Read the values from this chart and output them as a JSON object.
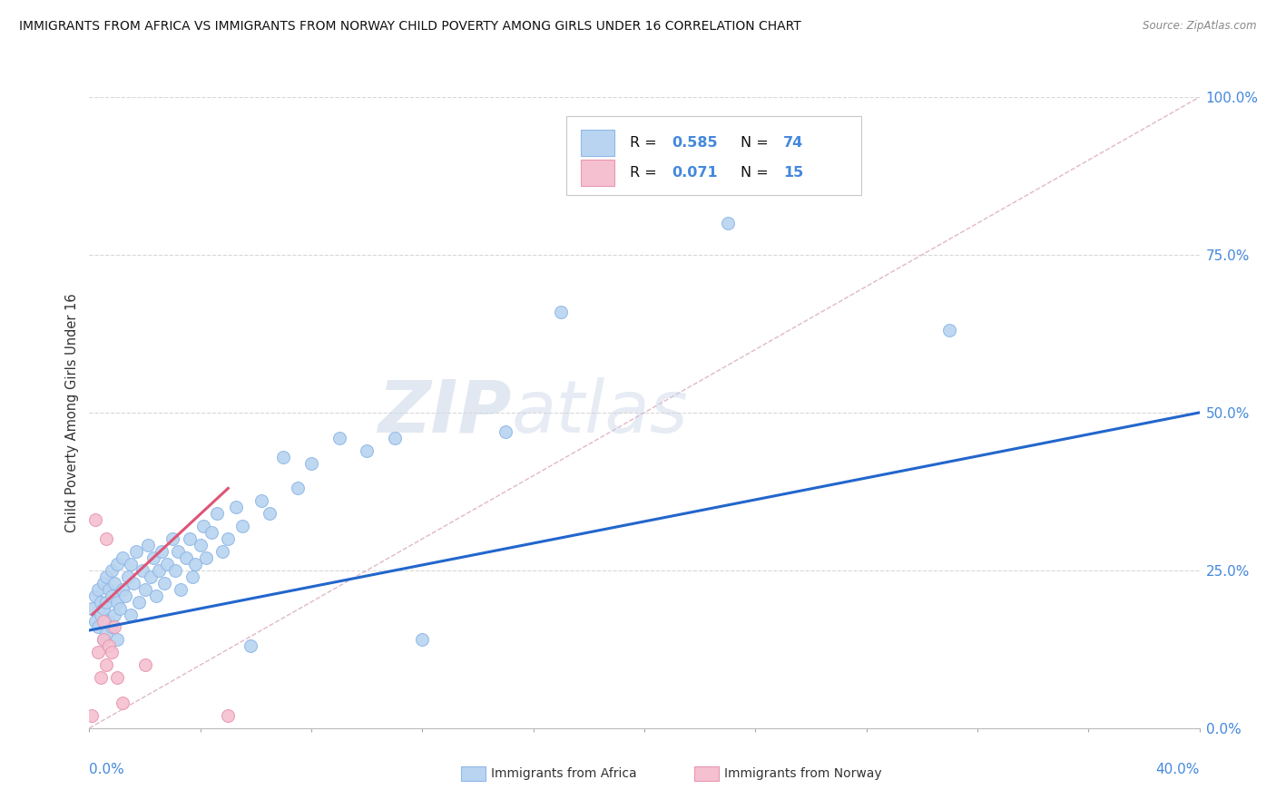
{
  "title": "IMMIGRANTS FROM AFRICA VS IMMIGRANTS FROM NORWAY CHILD POVERTY AMONG GIRLS UNDER 16 CORRELATION CHART",
  "source": "Source: ZipAtlas.com",
  "ylabel": "Child Poverty Among Girls Under 16",
  "ytick_labels": [
    "0.0%",
    "25.0%",
    "50.0%",
    "75.0%",
    "100.0%"
  ],
  "ytick_values": [
    0.0,
    0.25,
    0.5,
    0.75,
    1.0
  ],
  "xlim": [
    0.0,
    0.4
  ],
  "ylim": [
    0.0,
    1.0
  ],
  "africa_color": "#b8d4f0",
  "africa_edge": "#90b8e8",
  "norway_color": "#f5c0d0",
  "norway_edge": "#e898b0",
  "africa_line_color": "#2266cc",
  "norway_line_color": "#dd5577",
  "diag_color": "#d0c0c8",
  "watermark_zip": "ZIP",
  "watermark_atlas": "atlas",
  "legend_bottom_africa": "Immigrants from Africa",
  "legend_bottom_norway": "Immigrants from Norway",
  "africa_x": [
    0.001,
    0.002,
    0.002,
    0.003,
    0.003,
    0.004,
    0.004,
    0.005,
    0.005,
    0.005,
    0.006,
    0.006,
    0.006,
    0.007,
    0.007,
    0.008,
    0.008,
    0.008,
    0.009,
    0.009,
    0.01,
    0.01,
    0.01,
    0.011,
    0.012,
    0.012,
    0.013,
    0.014,
    0.015,
    0.015,
    0.016,
    0.017,
    0.018,
    0.019,
    0.02,
    0.021,
    0.022,
    0.023,
    0.024,
    0.025,
    0.026,
    0.027,
    0.028,
    0.03,
    0.031,
    0.032,
    0.033,
    0.035,
    0.036,
    0.037,
    0.038,
    0.04,
    0.041,
    0.042,
    0.044,
    0.046,
    0.048,
    0.05,
    0.053,
    0.055,
    0.058,
    0.062,
    0.065,
    0.07,
    0.075,
    0.08,
    0.09,
    0.1,
    0.11,
    0.12,
    0.15,
    0.17,
    0.23,
    0.31
  ],
  "africa_y": [
    0.19,
    0.17,
    0.21,
    0.16,
    0.22,
    0.18,
    0.2,
    0.14,
    0.19,
    0.23,
    0.15,
    0.2,
    0.24,
    0.17,
    0.22,
    0.16,
    0.21,
    0.25,
    0.18,
    0.23,
    0.14,
    0.2,
    0.26,
    0.19,
    0.22,
    0.27,
    0.21,
    0.24,
    0.18,
    0.26,
    0.23,
    0.28,
    0.2,
    0.25,
    0.22,
    0.29,
    0.24,
    0.27,
    0.21,
    0.25,
    0.28,
    0.23,
    0.26,
    0.3,
    0.25,
    0.28,
    0.22,
    0.27,
    0.3,
    0.24,
    0.26,
    0.29,
    0.32,
    0.27,
    0.31,
    0.34,
    0.28,
    0.3,
    0.35,
    0.32,
    0.13,
    0.36,
    0.34,
    0.43,
    0.38,
    0.42,
    0.46,
    0.44,
    0.46,
    0.14,
    0.47,
    0.66,
    0.8,
    0.63
  ],
  "norway_x": [
    0.001,
    0.002,
    0.003,
    0.004,
    0.005,
    0.005,
    0.006,
    0.006,
    0.007,
    0.008,
    0.009,
    0.01,
    0.012,
    0.02,
    0.05
  ],
  "norway_y": [
    0.02,
    0.33,
    0.12,
    0.08,
    0.14,
    0.17,
    0.1,
    0.3,
    0.13,
    0.12,
    0.16,
    0.08,
    0.04,
    0.1,
    0.02
  ]
}
